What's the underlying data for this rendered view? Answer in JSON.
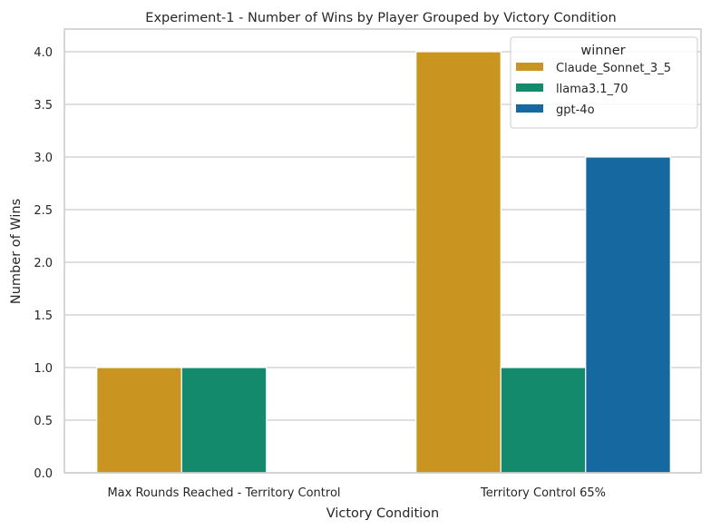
{
  "chart_data": {
    "type": "bar",
    "title": "Experiment-1 - Number of Wins by Player Grouped by Victory Condition",
    "xlabel": "Victory Condition",
    "ylabel": "Number of Wins",
    "categories": [
      "Max Rounds Reached - Territory Control",
      "Territory Control 65%"
    ],
    "series": [
      {
        "name": "Claude_Sonnet_3_5",
        "color": "#c99420",
        "values": [
          1,
          4
        ]
      },
      {
        "name": "llama3.1_70",
        "color": "#138a6c",
        "values": [
          1,
          1
        ]
      },
      {
        "name": "gpt-4o",
        "color": "#1669a0",
        "values": [
          0,
          3
        ]
      }
    ],
    "ylim": [
      0,
      4.2
    ],
    "yticks": [
      0.0,
      0.5,
      1.0,
      1.5,
      2.0,
      2.5,
      3.0,
      3.5,
      4.0
    ],
    "ytick_labels": [
      "0.0",
      "0.5",
      "1.0",
      "1.5",
      "2.0",
      "2.5",
      "3.0",
      "3.5",
      "4.0"
    ],
    "grid": true,
    "legend": {
      "title": "winner",
      "placement": "top-right"
    }
  }
}
